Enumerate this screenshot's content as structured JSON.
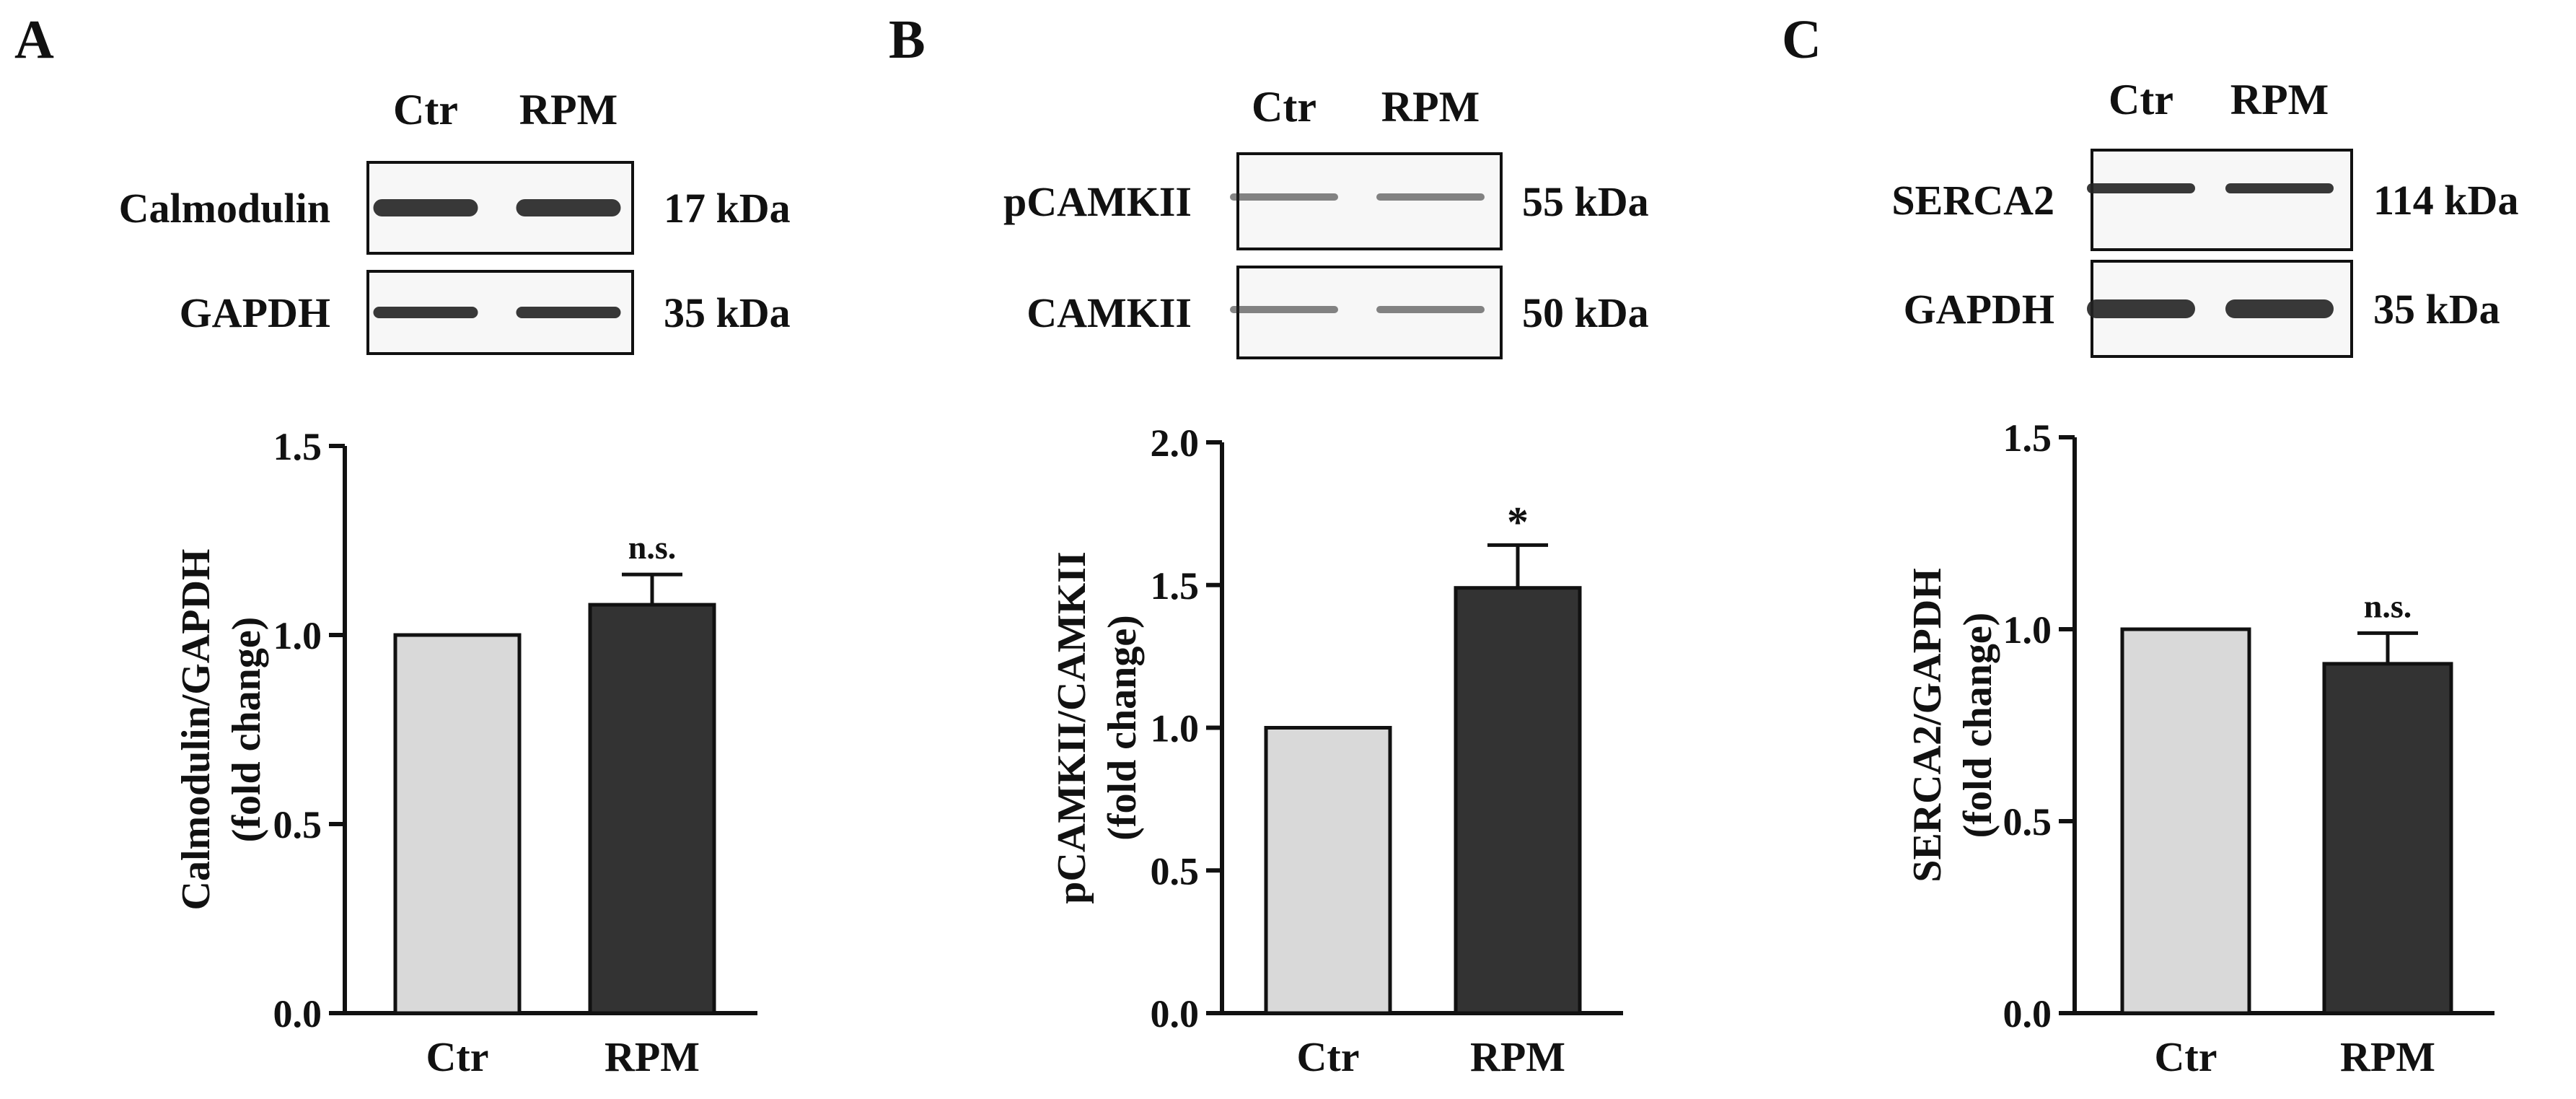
{
  "colors": {
    "ctr": "#d9d9d9",
    "rpm": "#333333",
    "stroke": "#111111",
    "band": "#222222"
  },
  "panels": [
    {
      "letter": "A",
      "lane_labels": [
        "Ctr",
        "RPM"
      ],
      "blots": [
        {
          "name": "Calmodulin",
          "kda": "17 kDa"
        },
        {
          "name": "GAPDH",
          "kda": "35 kDa"
        }
      ]
    },
    {
      "letter": "B",
      "lane_labels": [
        "Ctr",
        "RPM"
      ],
      "blots": [
        {
          "name": "pCAMKII",
          "kda": "55 kDa"
        },
        {
          "name": "CAMKII",
          "kda": "50 kDa"
        }
      ]
    },
    {
      "letter": "C",
      "lane_labels": [
        "Ctr",
        "RPM"
      ],
      "blots": [
        {
          "name": "SERCA2",
          "kda": "114 kDa"
        },
        {
          "name": "GAPDH",
          "kda": "35 kDa"
        }
      ]
    }
  ],
  "chart_data": [
    {
      "type": "bar",
      "categories": [
        "Ctr",
        "RPM"
      ],
      "values": [
        1.0,
        1.08
      ],
      "errors": [
        0,
        0.08
      ],
      "annotations": [
        "",
        "n.s."
      ],
      "ylabel": [
        "Calmodulin/GAPDH",
        "(fold change)"
      ],
      "ylim": [
        0,
        1.5
      ],
      "yticks": [
        "0.0",
        "0.5",
        "1.0",
        "1.5"
      ]
    },
    {
      "type": "bar",
      "categories": [
        "Ctr",
        "RPM"
      ],
      "values": [
        1.0,
        1.49
      ],
      "errors": [
        0,
        0.15
      ],
      "annotations": [
        "",
        "*"
      ],
      "ylabel": [
        "pCAMKII/CAMKII",
        "(fold change)"
      ],
      "ylim": [
        0,
        2.0
      ],
      "yticks": [
        "0.0",
        "0.5",
        "1.0",
        "1.5",
        "2.0"
      ]
    },
    {
      "type": "bar",
      "categories": [
        "Ctr",
        "RPM"
      ],
      "values": [
        1.0,
        0.91
      ],
      "errors": [
        0,
        0.08
      ],
      "annotations": [
        "",
        "n.s."
      ],
      "ylabel": [
        "SERCA2/GAPDH",
        "(fold change)"
      ],
      "ylim": [
        0,
        1.5
      ],
      "yticks": [
        "0.0",
        "0.5",
        "1.0",
        "1.5"
      ]
    }
  ]
}
